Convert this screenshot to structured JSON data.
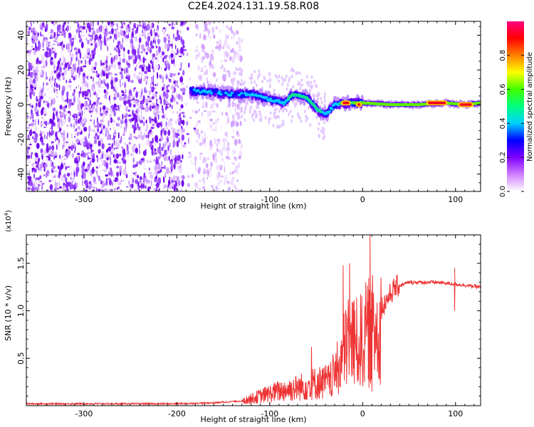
{
  "title": "C2E4.2024.131.19.58.R08",
  "chart_data": [
    {
      "type": "heatmap",
      "name": "spectrogram",
      "xlabel": "Height of straight line (km)",
      "ylabel": "Frequency (Hz)",
      "xlim": [
        -362,
        127
      ],
      "ylim": [
        -50,
        48
      ],
      "xticks": [
        -300,
        -200,
        -100,
        0,
        100
      ],
      "yticks": [
        -40,
        -20,
        0,
        20,
        40
      ],
      "colorbar": {
        "label": "Normalized spectral amplitude",
        "range": [
          0,
          1
        ],
        "ticks": [
          "0.0",
          "0.2",
          "0.4",
          "0.6",
          "0.8"
        ],
        "colors": [
          "#ffffff",
          "#d080ff",
          "#8000ff",
          "#0000ff",
          "#00d0ff",
          "#00ff80",
          "#40ff00",
          "#ffff00",
          "#ff8000",
          "#ff0000",
          "#ff0080"
        ]
      },
      "noise_region_x": [
        -362,
        -145
      ],
      "signal_ridge": [
        {
          "x": -185,
          "y": 8
        },
        {
          "x": -160,
          "y": 7
        },
        {
          "x": -140,
          "y": 6
        },
        {
          "x": -120,
          "y": 6
        },
        {
          "x": -100,
          "y": 3
        },
        {
          "x": -85,
          "y": 1
        },
        {
          "x": -75,
          "y": 6
        },
        {
          "x": -60,
          "y": 4
        },
        {
          "x": -48,
          "y": -3
        },
        {
          "x": -40,
          "y": -6
        },
        {
          "x": -30,
          "y": 0
        },
        {
          "x": -20,
          "y": 1
        },
        {
          "x": 0,
          "y": 1
        },
        {
          "x": 30,
          "y": 0
        },
        {
          "x": 60,
          "y": 0
        },
        {
          "x": 90,
          "y": 1
        },
        {
          "x": 110,
          "y": 0
        },
        {
          "x": 127,
          "y": 1
        }
      ],
      "peak_segments": [
        {
          "x": [
            -22,
            -14
          ],
          "y": 1
        },
        {
          "x": [
            -6,
            -2
          ],
          "y": 0
        },
        {
          "x": [
            70,
            90
          ],
          "y": 1
        },
        {
          "x": [
            104,
            118
          ],
          "y": 0
        }
      ]
    },
    {
      "type": "line",
      "name": "snr",
      "xlabel": "Height of straight line (km)",
      "ylabel": "SNR (10 * v/v)",
      "scale_label": "(x10",
      "scale_exp": "4",
      "scale_close": ")",
      "xlim": [
        -362,
        127
      ],
      "ylim": [
        0,
        1.8
      ],
      "xticks": [
        -300,
        -200,
        -100,
        0,
        100
      ],
      "yticks": [
        0.5,
        1.0,
        1.5
      ],
      "ytick_labels": [
        "0.5",
        "1.0",
        "1.5"
      ],
      "color": "#ee3333",
      "series": [
        {
          "values_envelope": [
            {
              "x": -362,
              "y": 0.02
            },
            {
              "x": -200,
              "y": 0.02
            },
            {
              "x": -160,
              "y": 0.03
            },
            {
              "x": -130,
              "y": 0.05
            },
            {
              "x": -110,
              "y": 0.12
            },
            {
              "x": -90,
              "y": 0.18
            },
            {
              "x": -70,
              "y": 0.22
            },
            {
              "x": -50,
              "y": 0.28
            },
            {
              "x": -35,
              "y": 0.3
            },
            {
              "x": -25,
              "y": 0.5
            },
            {
              "x": -15,
              "y": 0.85
            },
            {
              "x": -5,
              "y": 0.75
            },
            {
              "x": 5,
              "y": 0.9
            },
            {
              "x": 15,
              "y": 0.95
            },
            {
              "x": 25,
              "y": 1.1
            },
            {
              "x": 35,
              "y": 1.25
            },
            {
              "x": 50,
              "y": 1.3
            },
            {
              "x": 80,
              "y": 1.3
            },
            {
              "x": 100,
              "y": 1.28
            },
            {
              "x": 127,
              "y": 1.25
            }
          ],
          "spikes": [
            {
              "x": -21,
              "y": 1.48
            },
            {
              "x": -14,
              "y": 1.5
            },
            {
              "x": 8,
              "y": 1.8
            },
            {
              "x": 10,
              "y": 0.15
            },
            {
              "x": -55,
              "y": 0.62
            },
            {
              "x": 99,
              "y": 1.45
            },
            {
              "x": 99,
              "y": 1.0
            }
          ]
        }
      ]
    }
  ]
}
